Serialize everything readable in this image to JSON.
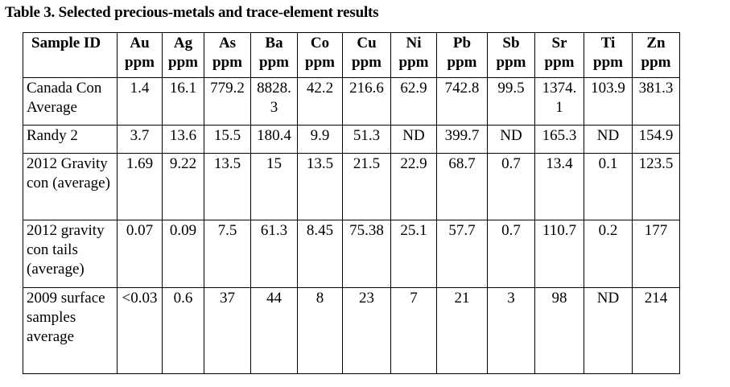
{
  "table": {
    "caption": "Table 3. Selected precious-metals and trace-element results",
    "id_header": "Sample ID",
    "columns": [
      {
        "element": "Au",
        "unit": "ppm"
      },
      {
        "element": "Ag",
        "unit": "ppm"
      },
      {
        "element": "As",
        "unit": "ppm"
      },
      {
        "element": "Ba",
        "unit": "ppm"
      },
      {
        "element": "Co",
        "unit": "ppm"
      },
      {
        "element": "Cu",
        "unit": "ppm"
      },
      {
        "element": "Ni",
        "unit": "ppm"
      },
      {
        "element": "Pb",
        "unit": "ppm"
      },
      {
        "element": "Sb",
        "unit": "ppm"
      },
      {
        "element": "Sr",
        "unit": "ppm"
      },
      {
        "element": "Ti",
        "unit": "ppm"
      },
      {
        "element": "Zn",
        "unit": "ppm"
      }
    ],
    "rows": [
      {
        "sample": "Canada Con Average",
        "values": [
          "1.4",
          "16.1",
          "779.2",
          "8828.3",
          "42.2",
          "216.6",
          "62.9",
          "742.8",
          "99.5",
          "1374.1",
          "103.9",
          "381.3"
        ]
      },
      {
        "sample": "Randy 2",
        "values": [
          "3.7",
          "13.6",
          "15.5",
          "180.4",
          "9.9",
          "51.3",
          "ND",
          "399.7",
          "ND",
          "165.3",
          "ND",
          "154.9"
        ]
      },
      {
        "sample": "2012 Gravity con (average)",
        "values": [
          "1.69",
          "9.22",
          "13.5",
          "15",
          "13.5",
          "21.5",
          "22.9",
          "68.7",
          "0.7",
          "13.4",
          "0.1",
          "123.5"
        ]
      },
      {
        "sample": "2012 gravity con tails (average)",
        "values": [
          "0.07",
          "0.09",
          "7.5",
          "61.3",
          "8.45",
          "75.38",
          "25.1",
          "57.7",
          "0.7",
          "110.7",
          "0.2",
          "177"
        ]
      },
      {
        "sample": "2009 surface samples average",
        "values": [
          "<0.03",
          "0.6",
          "37",
          "44",
          "8",
          "23",
          "7",
          "21",
          "3",
          "98",
          "ND",
          "214"
        ]
      }
    ]
  }
}
